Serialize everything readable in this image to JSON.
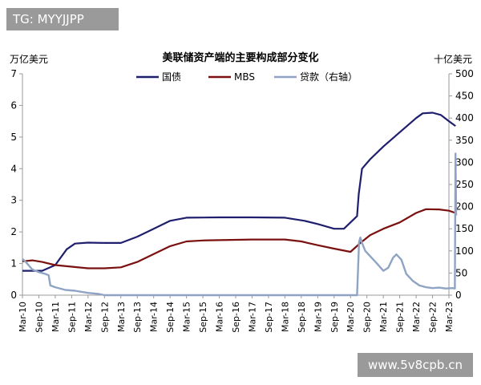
{
  "overlay": {
    "tag_text": "TG: MYYJJPP",
    "watermark_text": "www.5v8cpb.cn"
  },
  "chart_data": {
    "type": "line",
    "title": "美联储资产端的主要构成部分变化",
    "left_unit": "万亿美元",
    "right_unit": "十亿美元",
    "ylim_left": [
      0,
      7
    ],
    "ylim_right": [
      0,
      500
    ],
    "left_ticks": [
      "0",
      "1",
      "2",
      "3",
      "4",
      "5",
      "6",
      "7"
    ],
    "right_ticks": [
      "0",
      "50",
      "100",
      "150",
      "200",
      "250",
      "300",
      "350",
      "400",
      "450",
      "500"
    ],
    "xlim": [
      2010.0,
      2023.0
    ],
    "x_tick_labels": [
      "Mar-10",
      "Sep-10",
      "Mar-11",
      "Sep-11",
      "Mar-12",
      "Sep-12",
      "Mar-13",
      "Sep-13",
      "Mar-14",
      "Sep-14",
      "Mar-15",
      "Sep-15",
      "Mar-16",
      "Sep-16",
      "Mar-17",
      "Sep-17",
      "Mar-18",
      "Sep-18",
      "Mar-19",
      "Sep-19",
      "Mar-20",
      "Sep-20",
      "Mar-21",
      "Sep-21",
      "Mar-22",
      "Sep-22",
      "Mar-23"
    ],
    "legend_position": "top",
    "grid": false,
    "series": [
      {
        "name": "国债",
        "axis": "left",
        "color": "#1f1f6e",
        "points": [
          [
            2010.0,
            0.77
          ],
          [
            2010.6,
            0.77
          ],
          [
            2011.0,
            0.95
          ],
          [
            2011.35,
            1.45
          ],
          [
            2011.6,
            1.63
          ],
          [
            2012.0,
            1.66
          ],
          [
            2012.5,
            1.65
          ],
          [
            2013.0,
            1.65
          ],
          [
            2013.5,
            1.85
          ],
          [
            2014.0,
            2.1
          ],
          [
            2014.5,
            2.35
          ],
          [
            2015.0,
            2.45
          ],
          [
            2016.0,
            2.46
          ],
          [
            2017.0,
            2.46
          ],
          [
            2018.0,
            2.45
          ],
          [
            2018.6,
            2.35
          ],
          [
            2019.0,
            2.25
          ],
          [
            2019.5,
            2.1
          ],
          [
            2019.8,
            2.1
          ],
          [
            2020.0,
            2.3
          ],
          [
            2020.2,
            2.5
          ],
          [
            2020.25,
            3.2
          ],
          [
            2020.35,
            4.0
          ],
          [
            2020.6,
            4.3
          ],
          [
            2021.0,
            4.7
          ],
          [
            2021.5,
            5.15
          ],
          [
            2022.0,
            5.6
          ],
          [
            2022.2,
            5.75
          ],
          [
            2022.5,
            5.77
          ],
          [
            2022.75,
            5.7
          ],
          [
            2023.0,
            5.5
          ],
          [
            2023.2,
            5.35
          ]
        ]
      },
      {
        "name": "MBS",
        "axis": "left",
        "color": "#7a1010",
        "points": [
          [
            2010.0,
            1.07
          ],
          [
            2010.3,
            1.1
          ],
          [
            2010.6,
            1.05
          ],
          [
            2011.0,
            0.95
          ],
          [
            2011.5,
            0.9
          ],
          [
            2012.0,
            0.85
          ],
          [
            2012.5,
            0.85
          ],
          [
            2013.0,
            0.88
          ],
          [
            2013.5,
            1.05
          ],
          [
            2014.0,
            1.3
          ],
          [
            2014.5,
            1.55
          ],
          [
            2015.0,
            1.7
          ],
          [
            2015.5,
            1.73
          ],
          [
            2016.0,
            1.74
          ],
          [
            2017.0,
            1.76
          ],
          [
            2018.0,
            1.76
          ],
          [
            2018.5,
            1.7
          ],
          [
            2019.0,
            1.58
          ],
          [
            2019.5,
            1.47
          ],
          [
            2020.0,
            1.37
          ],
          [
            2020.3,
            1.65
          ],
          [
            2020.6,
            1.9
          ],
          [
            2021.0,
            2.1
          ],
          [
            2021.5,
            2.3
          ],
          [
            2022.0,
            2.6
          ],
          [
            2022.3,
            2.72
          ],
          [
            2022.7,
            2.71
          ],
          [
            2023.0,
            2.67
          ],
          [
            2023.2,
            2.6
          ]
        ]
      },
      {
        "name": "贷款（右轴）",
        "axis": "right",
        "color": "#8fa4c4",
        "points": [
          [
            2010.0,
            82
          ],
          [
            2010.1,
            75
          ],
          [
            2010.3,
            58
          ],
          [
            2010.5,
            52
          ],
          [
            2010.7,
            48
          ],
          [
            2010.8,
            45
          ],
          [
            2010.85,
            22
          ],
          [
            2011.0,
            18
          ],
          [
            2011.3,
            12
          ],
          [
            2011.6,
            10
          ],
          [
            2012.0,
            5
          ],
          [
            2012.3,
            3
          ],
          [
            2012.5,
            0
          ],
          [
            2013.0,
            0
          ],
          [
            2014.0,
            0
          ],
          [
            2015.0,
            0
          ],
          [
            2016.0,
            0
          ],
          [
            2017.0,
            0
          ],
          [
            2018.0,
            0
          ],
          [
            2019.0,
            0
          ],
          [
            2019.9,
            0
          ],
          [
            2020.2,
            0
          ],
          [
            2020.26,
            120
          ],
          [
            2020.3,
            130
          ],
          [
            2020.35,
            118
          ],
          [
            2020.45,
            100
          ],
          [
            2020.6,
            88
          ],
          [
            2020.8,
            72
          ],
          [
            2021.0,
            55
          ],
          [
            2021.15,
            62
          ],
          [
            2021.3,
            85
          ],
          [
            2021.4,
            92
          ],
          [
            2021.55,
            80
          ],
          [
            2021.7,
            48
          ],
          [
            2021.9,
            32
          ],
          [
            2022.1,
            22
          ],
          [
            2022.3,
            18
          ],
          [
            2022.5,
            16
          ],
          [
            2022.7,
            17
          ],
          [
            2022.9,
            15
          ],
          [
            2023.1,
            16
          ],
          [
            2023.18,
            15
          ],
          [
            2023.2,
            320
          ],
          [
            2023.22,
            180
          ]
        ]
      }
    ]
  }
}
